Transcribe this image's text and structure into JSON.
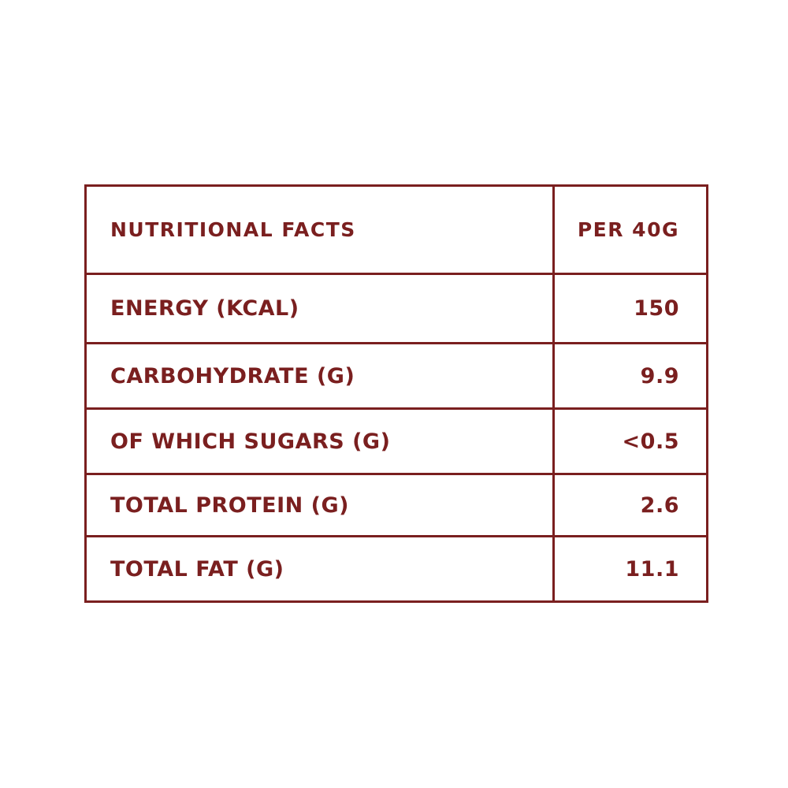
{
  "table": {
    "header": {
      "label": "NUTRITIONAL FACTS",
      "value": "PER 40G"
    },
    "rows": [
      {
        "label": "ENERGY (KCAL)",
        "value": "150"
      },
      {
        "label": "CARBOHYDRATE (G)",
        "value": "9.9"
      },
      {
        "label": "OF WHICH SUGARS (G)",
        "value": "<0.5"
      },
      {
        "label": "TOTAL PROTEIN (G)",
        "value": "2.6"
      },
      {
        "label": "TOTAL FAT (G)",
        "value": "11.1"
      }
    ]
  },
  "colors": {
    "accent": "#7a1f1f",
    "background": "#ffffff"
  }
}
